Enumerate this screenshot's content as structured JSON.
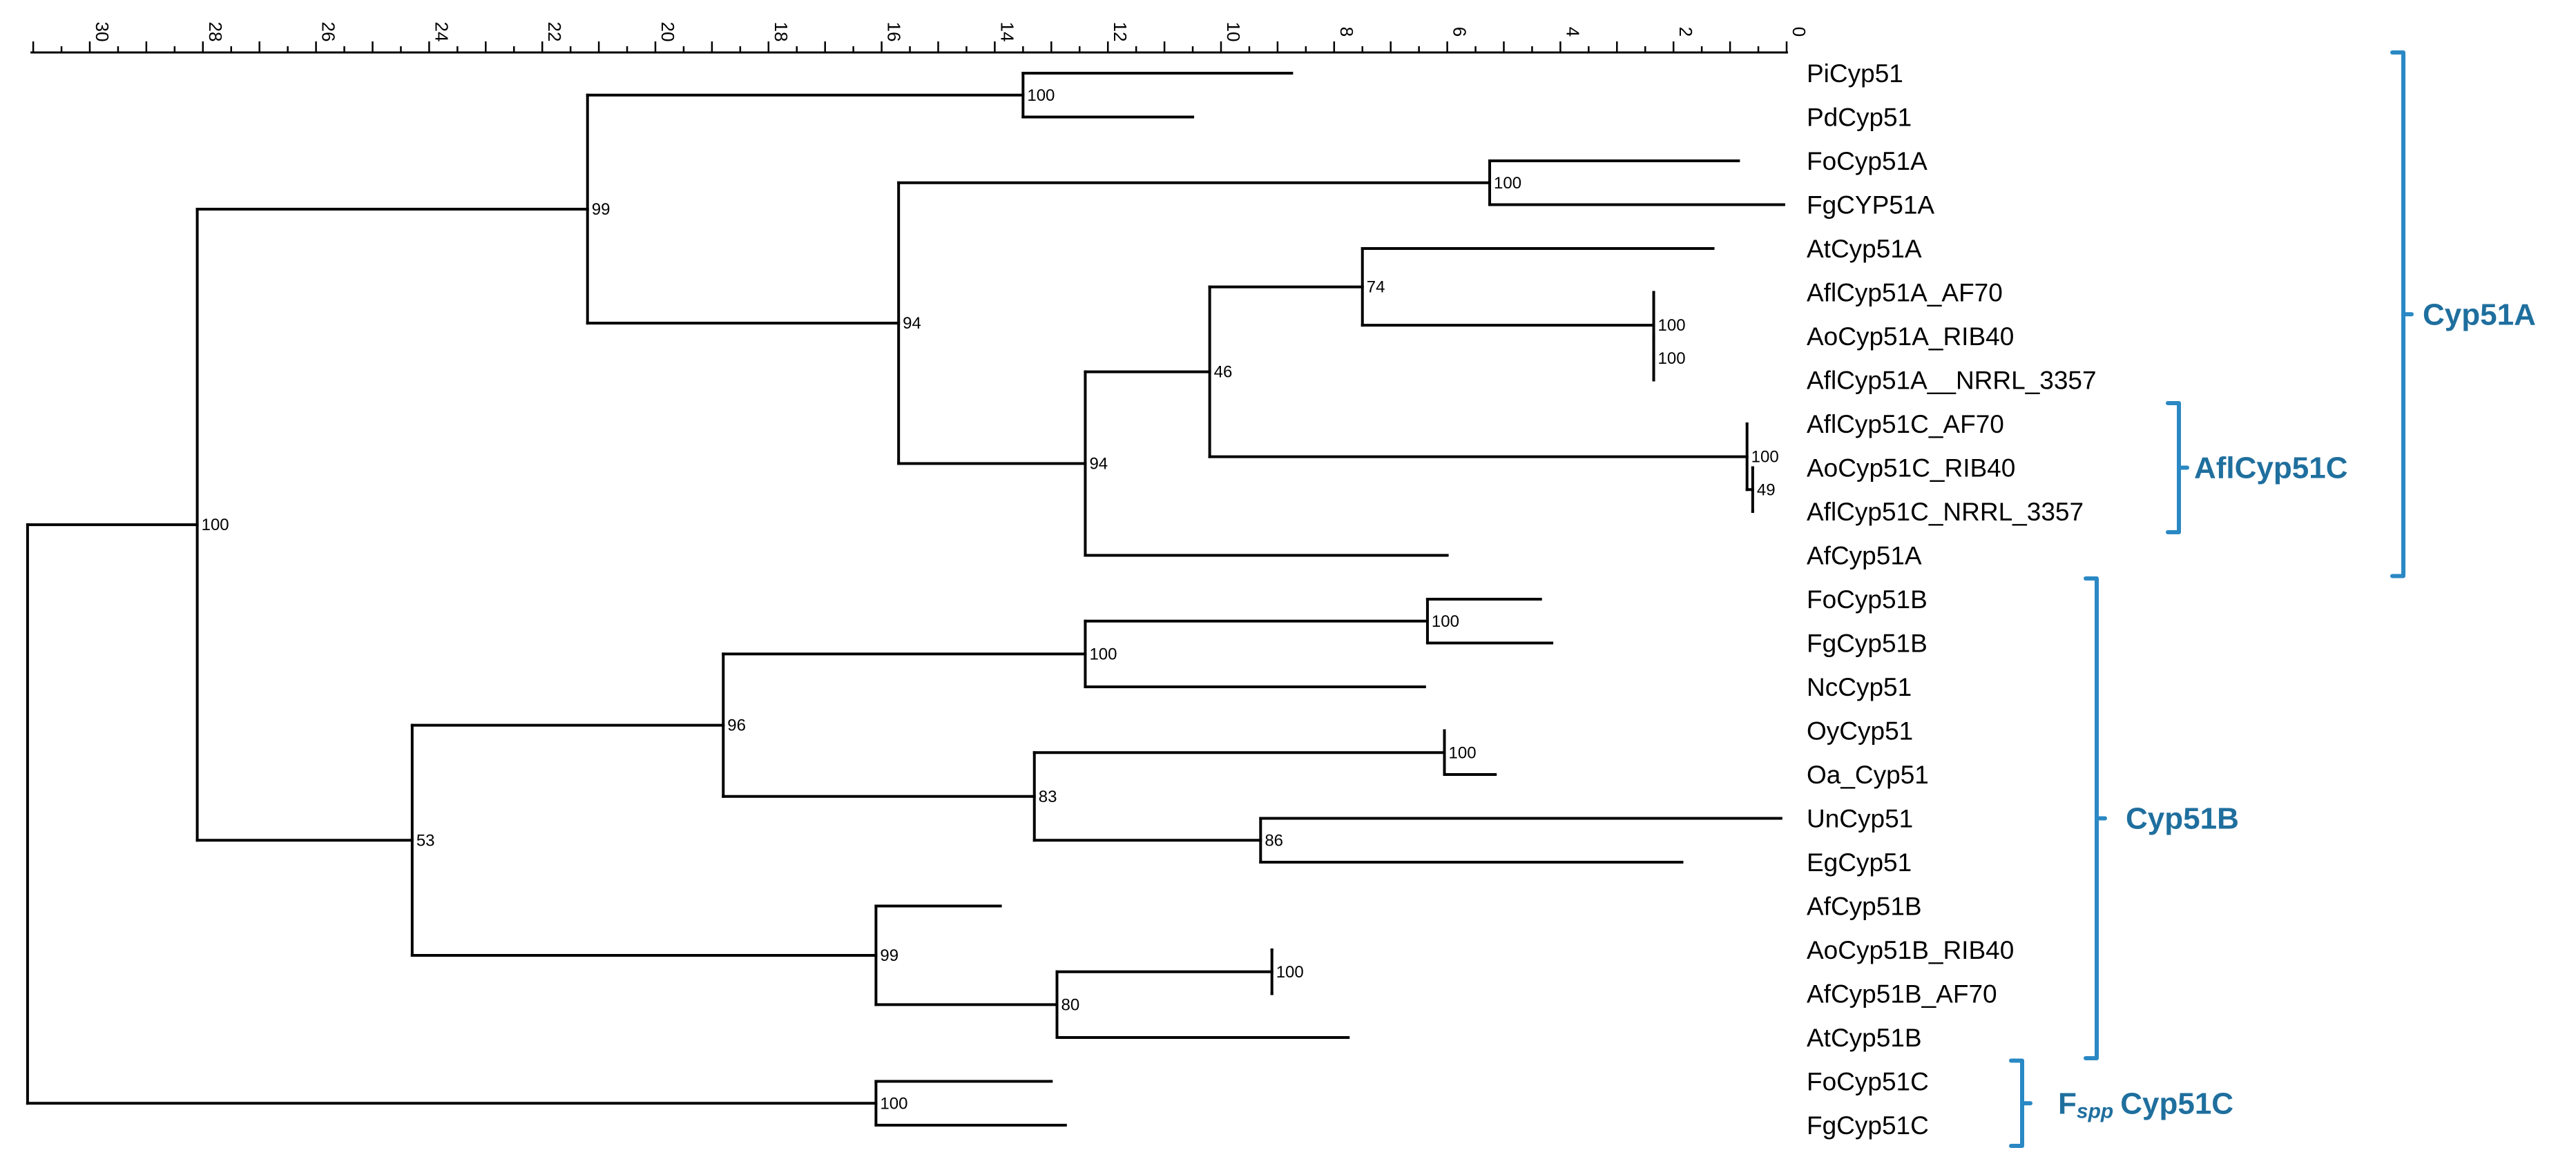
{
  "axis": {
    "label_values": [
      30,
      28,
      26,
      24,
      22,
      20,
      18,
      16,
      14,
      12,
      10,
      8,
      6,
      4,
      2,
      0
    ],
    "min": 0,
    "max": 31,
    "minor_step": 0.5
  },
  "taxa": [
    "PiCyp51",
    "PdCyp51",
    "FoCyp51A",
    "FgCYP51A",
    "AtCyp51A",
    "AflCyp51A_AF70",
    "AoCyp51A_RIB40",
    "AflCyp51A__NRRL_3357",
    "AflCyp51C_AF70",
    "AoCyp51C_RIB40",
    "AflCyp51C_NRRL_3357",
    "AfCyp51A",
    "FoCyp51B",
    "FgCyp51B",
    "NcCyp51",
    "OyCyp51",
    "Oa_Cyp51",
    "UnCyp51",
    "EgCyp51",
    "AfCyp51B",
    "AoCyp51B_RIB40",
    "AfCyp51B_AF70",
    "AtCyp51B",
    "FoCyp51C",
    "FgCyp51C"
  ],
  "tree": {
    "id": "root",
    "h": 31.1,
    "children": [
      {
        "id": "n100a",
        "h": 28.1,
        "support": "100",
        "children": [
          {
            "id": "n99a",
            "h": 21.2,
            "support": "99",
            "children": [
              {
                "id": "n100b",
                "h": 13.5,
                "support": "100",
                "children": [
                  {
                    "taxon": 0,
                    "h": 8.75
                  },
                  {
                    "taxon": 1,
                    "h": 10.5
                  }
                ]
              },
              {
                "id": "n94a",
                "h": 15.7,
                "support": "94",
                "children": [
                  {
                    "id": "n100c",
                    "h": 5.25,
                    "support": "100",
                    "children": [
                      {
                        "taxon": 2,
                        "h": 0.85
                      },
                      {
                        "taxon": 3,
                        "h": 0.05
                      }
                    ]
                  },
                  {
                    "id": "n94b",
                    "h": 12.4,
                    "support": "94",
                    "children": [
                      {
                        "id": "n46",
                        "h": 10.2,
                        "support": "46",
                        "children": [
                          {
                            "id": "n74",
                            "h": 7.5,
                            "support": "74",
                            "children": [
                              {
                                "taxon": 4,
                                "h": 1.3
                              },
                              {
                                "id": "n100d",
                                "h": 2.35,
                                "support": "100",
                                "children": [
                                  {
                                    "taxon": 5,
                                    "h": 2.35
                                  },
                                  {
                                    "id": "n100e",
                                    "h": 2.35,
                                    "support": "100",
                                    "children": [
                                      {
                                        "taxon": 6,
                                        "h": 2.35
                                      },
                                      {
                                        "taxon": 7,
                                        "h": 2.35
                                      }
                                    ]
                                  }
                                ]
                              }
                            ]
                          },
                          {
                            "id": "n100f",
                            "h": 0.7,
                            "support": "100",
                            "children": [
                              {
                                "taxon": 8,
                                "h": 0.7
                              },
                              {
                                "id": "n49",
                                "h": 0.6,
                                "support": "49",
                                "children": [
                                  {
                                    "taxon": 9,
                                    "h": 0.6
                                  },
                                  {
                                    "taxon": 10,
                                    "h": 0.6
                                  }
                                ]
                              }
                            ]
                          }
                        ]
                      },
                      {
                        "taxon": 11,
                        "h": 6.0
                      }
                    ]
                  }
                ]
              }
            ]
          },
          {
            "id": "n53",
            "h": 24.3,
            "support": "53",
            "children": [
              {
                "id": "n96",
                "h": 18.8,
                "support": "96",
                "children": [
                  {
                    "id": "n100g",
                    "h": 12.4,
                    "support": "100",
                    "children": [
                      {
                        "id": "n100h",
                        "h": 6.35,
                        "support": "100",
                        "children": [
                          {
                            "taxon": 12,
                            "h": 4.35
                          },
                          {
                            "taxon": 13,
                            "h": 4.15
                          }
                        ]
                      },
                      {
                        "taxon": 14,
                        "h": 6.4
                      }
                    ]
                  },
                  {
                    "id": "n83",
                    "h": 13.3,
                    "support": "83",
                    "children": [
                      {
                        "id": "n100i",
                        "h": 6.05,
                        "support": "100",
                        "children": [
                          {
                            "taxon": 15,
                            "h": 6.05
                          },
                          {
                            "taxon": 16,
                            "h": 5.15
                          }
                        ]
                      },
                      {
                        "id": "n86",
                        "h": 9.3,
                        "support": "86",
                        "children": [
                          {
                            "taxon": 17,
                            "h": 0.1
                          },
                          {
                            "taxon": 18,
                            "h": 1.85
                          }
                        ]
                      }
                    ]
                  }
                ]
              },
              {
                "id": "n99b",
                "h": 16.1,
                "support": "99",
                "children": [
                  {
                    "taxon": 19,
                    "h": 13.9
                  },
                  {
                    "id": "n80",
                    "h": 12.9,
                    "support": "80",
                    "children": [
                      {
                        "id": "n100j",
                        "h": 9.1,
                        "support": "100",
                        "children": [
                          {
                            "taxon": 20,
                            "h": 9.1
                          },
                          {
                            "taxon": 21,
                            "h": 9.1
                          }
                        ]
                      },
                      {
                        "taxon": 22,
                        "h": 7.75
                      }
                    ]
                  }
                ]
              }
            ]
          }
        ]
      },
      {
        "id": "n100k",
        "h": 16.1,
        "support": "100",
        "children": [
          {
            "taxon": 23,
            "h": 13.0
          },
          {
            "taxon": 24,
            "h": 12.75
          }
        ]
      }
    ]
  },
  "groups": [
    {
      "name": "Cyp51A",
      "from": 0,
      "to": 11,
      "level": "outer"
    },
    {
      "name": "AflCyp51C",
      "from": 8,
      "to": 10,
      "level": "inner"
    },
    {
      "name": "Cyp51B",
      "from": 12,
      "to": 22,
      "level": "middle"
    },
    {
      "name": "Cyp51C",
      "prefix": "F",
      "prefix_sub": "spp",
      "from": 23,
      "to": 24,
      "level": "inner"
    }
  ],
  "colors": {
    "tree": "#000000",
    "bracket": "#2a88c4",
    "group_text": "#1f6f9e"
  }
}
